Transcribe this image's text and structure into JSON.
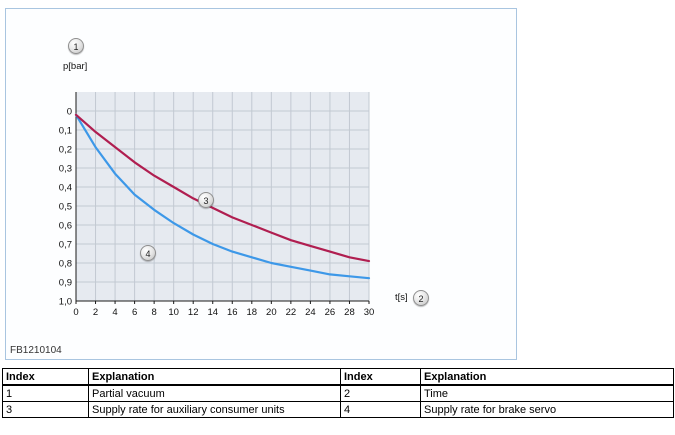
{
  "figure": {
    "code": "FB1210104",
    "ylabel": "p[bar]",
    "xlabel": "t[s]"
  },
  "callouts": {
    "c1": "1",
    "c2": "2",
    "c3": "3",
    "c4": "4"
  },
  "colors": {
    "plot_background": "#e6eaf0",
    "grid": "#c2c9d2",
    "axis": "#1a1a1a",
    "series_auxiliary": "#b01e50",
    "series_brake_servo": "#3d98e8",
    "figure_border": "#a9c5e0"
  },
  "chart_data": {
    "type": "line",
    "title": "",
    "xlabel": "t[s]",
    "ylabel": "p[bar]",
    "x": [
      0,
      2,
      4,
      6,
      8,
      10,
      12,
      14,
      16,
      18,
      20,
      22,
      24,
      26,
      28,
      30
    ],
    "x_ticks": [
      "0",
      "2",
      "4",
      "6",
      "8",
      "10",
      "12",
      "14",
      "16",
      "18",
      "20",
      "22",
      "24",
      "26",
      "28",
      "30"
    ],
    "y_ticks": [
      "0",
      "0,1",
      "0,2",
      "0,3",
      "0,4",
      "0,5",
      "0,6",
      "0,7",
      "0,8",
      "0,9",
      "1,0"
    ],
    "xlim": [
      0,
      30
    ],
    "ylim": [
      0,
      1.0
    ],
    "y_axis_inverted": true,
    "grid": true,
    "legend_position": "none",
    "series": [
      {
        "name": "Supply rate for auxiliary consumer units",
        "callout": "3",
        "color": "#b01e50",
        "values": [
          0.02,
          0.11,
          0.19,
          0.27,
          0.34,
          0.4,
          0.46,
          0.51,
          0.56,
          0.6,
          0.64,
          0.68,
          0.71,
          0.74,
          0.77,
          0.79
        ]
      },
      {
        "name": "Supply rate for brake servo",
        "callout": "4",
        "color": "#3d98e8",
        "values": [
          0.02,
          0.19,
          0.33,
          0.44,
          0.52,
          0.59,
          0.65,
          0.7,
          0.74,
          0.77,
          0.8,
          0.82,
          0.84,
          0.86,
          0.87,
          0.88
        ]
      }
    ]
  },
  "legend": {
    "headers": [
      "Index",
      "Explanation",
      "Index",
      "Explanation"
    ],
    "rows": [
      [
        "1",
        "Partial vacuum",
        "2",
        "Time"
      ],
      [
        "3",
        "Supply rate for auxiliary consumer units",
        "4",
        "Supply rate for brake servo"
      ]
    ]
  }
}
